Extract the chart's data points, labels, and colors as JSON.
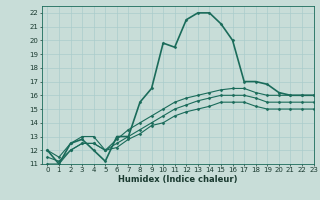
{
  "xlabel": "Humidex (Indice chaleur)",
  "bg_color": "#c8ddd8",
  "line_color": "#1a6b5a",
  "grid_color": "#aacccc",
  "xlim": [
    -0.5,
    23
  ],
  "ylim": [
    11,
    22.5
  ],
  "xticks": [
    0,
    1,
    2,
    3,
    4,
    5,
    6,
    7,
    8,
    9,
    10,
    11,
    12,
    13,
    14,
    15,
    16,
    17,
    18,
    19,
    20,
    21,
    22,
    23
  ],
  "yticks": [
    11,
    12,
    13,
    14,
    15,
    16,
    17,
    18,
    19,
    20,
    21,
    22
  ],
  "series": [
    [
      12,
      11,
      12.5,
      12.8,
      12,
      11.2,
      13,
      13,
      15.5,
      16.5,
      19.8,
      19.5,
      21.5,
      22,
      22,
      21.2,
      20,
      17,
      17,
      16.8,
      16.2,
      16,
      16,
      16
    ],
    [
      12,
      11.5,
      12.5,
      13,
      13,
      12,
      12.8,
      13.5,
      14,
      14.5,
      15,
      15.5,
      15.8,
      16,
      16.2,
      16.4,
      16.5,
      16.5,
      16.2,
      16,
      16,
      16,
      16,
      16
    ],
    [
      11.5,
      11.2,
      12,
      12.5,
      12.5,
      12,
      12.5,
      13,
      13.5,
      14,
      14.5,
      15,
      15.3,
      15.6,
      15.8,
      16,
      16,
      16,
      15.8,
      15.5,
      15.5,
      15.5,
      15.5,
      15.5
    ],
    [
      11,
      11,
      12,
      12.5,
      12.5,
      12,
      12.2,
      12.8,
      13.2,
      13.8,
      14,
      14.5,
      14.8,
      15,
      15.2,
      15.5,
      15.5,
      15.5,
      15.2,
      15,
      15,
      15,
      15,
      15
    ]
  ],
  "linewidths": [
    1.2,
    0.8,
    0.8,
    0.8
  ],
  "xlabel_fontsize": 6,
  "tick_fontsize": 5
}
